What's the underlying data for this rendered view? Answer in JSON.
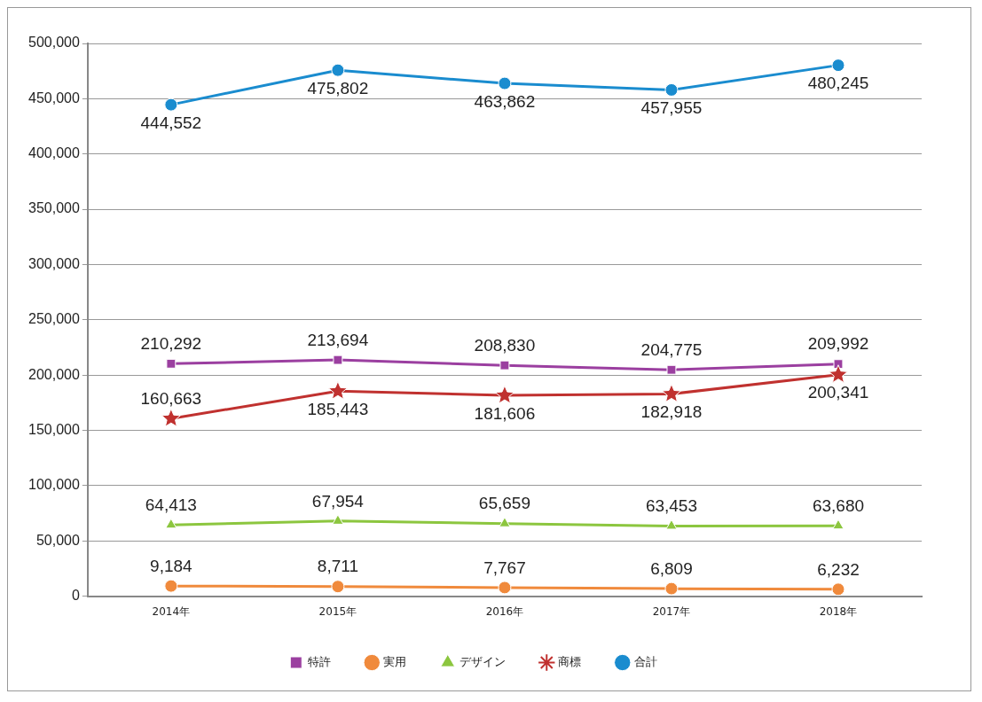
{
  "chart_data": {
    "type": "line",
    "categories": [
      "2014年",
      "2015年",
      "2016年",
      "2017年",
      "2018年"
    ],
    "series": [
      {
        "name": "特許",
        "color": "#9b3fa0",
        "marker": "square",
        "values": [
          210292,
          213694,
          208830,
          204775,
          209992
        ],
        "value_labels": [
          "210,292",
          "213,694",
          "208,830",
          "204,775",
          "209,992"
        ]
      },
      {
        "name": "実用",
        "color": "#f08a3c",
        "marker": "circle",
        "values": [
          9184,
          8711,
          7767,
          6809,
          6232
        ],
        "value_labels": [
          "9,184",
          "8,711",
          "7,767",
          "6,809",
          "6,232"
        ]
      },
      {
        "name": "デザイン",
        "color": "#8cc63f",
        "marker": "triangle",
        "values": [
          64413,
          67954,
          65659,
          63453,
          63680
        ],
        "value_labels": [
          "64,413",
          "67,954",
          "65,659",
          "63,453",
          "63,680"
        ]
      },
      {
        "name": "商標",
        "color": "#c0312f",
        "marker": "star",
        "values": [
          160663,
          185443,
          181606,
          182918,
          200341
        ],
        "value_labels": [
          "160,663",
          "185,443",
          "181,606",
          "182,918",
          "200,341"
        ]
      },
      {
        "name": "合計",
        "color": "#1a8ccf",
        "marker": "circle",
        "values": [
          444552,
          475802,
          463862,
          457955,
          480245
        ],
        "value_labels": [
          "444,552",
          "475,802",
          "463,862",
          "457,955",
          "480,245"
        ]
      }
    ],
    "ylim": [
      0,
      500000
    ],
    "yticks": [
      0,
      {
        "value": 50000,
        "label": "50,000"
      },
      {
        "value": 100000,
        "label": "100,000"
      },
      {
        "value": 150000,
        "label": "150,000"
      },
      {
        "value": 200000,
        "label": "200,000"
      },
      {
        "value": 250000,
        "label": "250,000"
      },
      {
        "value": 300000,
        "label": "300,000"
      },
      {
        "value": 350000,
        "label": "350,000"
      },
      {
        "value": 400000,
        "label": "400,000"
      },
      {
        "value": 450000,
        "label": "450,000"
      },
      {
        "value": 500000,
        "label": "500,000"
      }
    ],
    "grid": "y",
    "line_style": "solid",
    "legend": "bottom"
  }
}
